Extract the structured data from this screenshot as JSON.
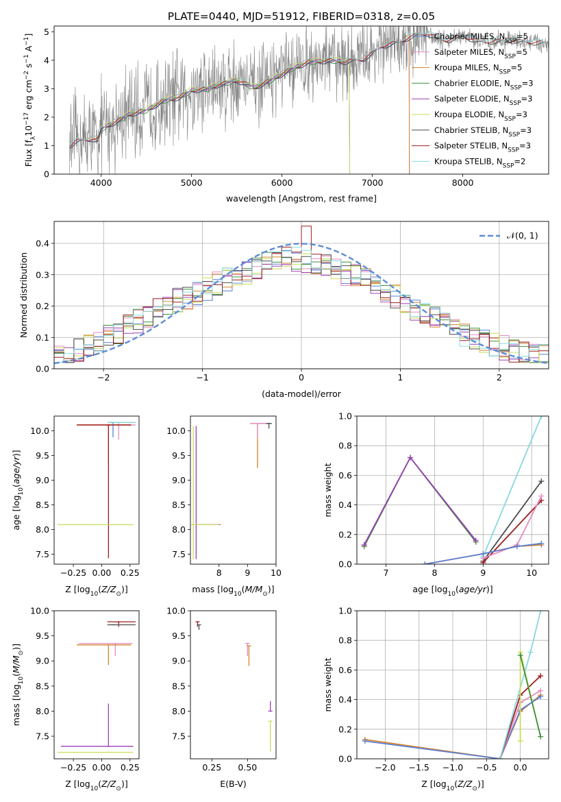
{
  "figure_title": "PLATE=0440, MJD=51912, FIBERID=0318, z=0.05",
  "colors": {
    "Chabrier MILES": "#5a7fd6",
    "Salpeter MILES": "#e58ac1",
    "Kroupa MILES": "#d4822a",
    "Chabrier ELODIE": "#3f8f3f",
    "Salpeter ELODIE": "#9b40b8",
    "Kroupa ELODIE": "#c9dd5a",
    "Chabrier STELIB": "#4b4b4b",
    "Salpeter STELIB": "#9b1b1b",
    "Kroupa STELIB": "#86d8df",
    "data": "#808080",
    "normal": "#5b8bd8"
  },
  "chart_data": [
    {
      "id": "spectrum",
      "type": "line",
      "xlabel": "wavelength [Angstrom, rest frame]",
      "ylabel": "Flux [f_λ 10^-17 erg cm^-2 s^-1 A^-1]",
      "xlim": [
        3480,
        8950
      ],
      "ylim": [
        0,
        5.2
      ],
      "xticks": [
        "4000",
        "5000",
        "6000",
        "7000",
        "8000"
      ],
      "yticks": [
        "0",
        "1",
        "2",
        "3",
        "4",
        "5"
      ],
      "legend_location": "upper right",
      "legend": [
        {
          "label": "Chabrier MILES, N",
          "sub": "SSP",
          "suffix": "=5"
        },
        {
          "label": "Salpeter MILES, N",
          "sub": "SSP",
          "suffix": "=5"
        },
        {
          "label": "Kroupa MILES, N",
          "sub": "SSP",
          "suffix": "=5"
        },
        {
          "label": "Chabrier ELODIE, N",
          "sub": "SSP",
          "suffix": "=3"
        },
        {
          "label": "Salpeter ELODIE, N",
          "sub": "SSP",
          "suffix": "=3"
        },
        {
          "label": "Kroupa ELODIE, N",
          "sub": "SSP",
          "suffix": "=3"
        },
        {
          "label": "Chabrier STELIB, N",
          "sub": "SSP",
          "suffix": "=3"
        },
        {
          "label": "Salpeter STELIB, N",
          "sub": "SSP",
          "suffix": "=3"
        },
        {
          "label": "Kroupa STELIB, N",
          "sub": "SSP",
          "suffix": "=2"
        }
      ],
      "model_continuum": {
        "wavelength": [
          3650,
          3720,
          3800,
          3900,
          3960,
          4000,
          4100,
          4200,
          4300,
          4500,
          4700,
          4861,
          5000,
          5175,
          5300,
          5500,
          5700,
          5900,
          6100,
          6300,
          6563,
          6700,
          6900,
          7000,
          7100,
          7300,
          7400,
          7500,
          7600,
          7800,
          8000,
          8200,
          8500,
          8950
        ],
        "flux": [
          1.0,
          1.15,
          1.2,
          1.25,
          1.2,
          1.6,
          1.75,
          1.9,
          2.1,
          2.25,
          2.6,
          2.7,
          2.95,
          3.0,
          3.15,
          3.3,
          3.05,
          3.35,
          3.7,
          3.95,
          4.0,
          3.95,
          4.05,
          4.25,
          4.5,
          4.65,
          4.8,
          4.9,
          4.95,
          4.7,
          4.85,
          4.65,
          4.7,
          4.6
        ]
      },
      "model_ranges": {
        "Chabrier MILES": [
          3650,
          7410
        ],
        "Salpeter MILES": [
          3650,
          7410
        ],
        "Kroupa MILES": [
          3650,
          7410
        ],
        "Chabrier ELODIE": [
          3900,
          6750
        ],
        "Salpeter ELODIE": [
          3900,
          6750
        ],
        "Kroupa ELODIE": [
          3900,
          6750
        ],
        "Chabrier STELIB": [
          3650,
          8950
        ],
        "Salpeter STELIB": [
          3650,
          8950
        ],
        "Kroupa STELIB": [
          3650,
          8950
        ]
      }
    },
    {
      "id": "residuals",
      "type": "line",
      "xlabel": "(data-model)/error",
      "ylabel": "Normed distribution",
      "xlim": [
        -2.5,
        2.5
      ],
      "ylim": [
        0,
        0.47
      ],
      "xticks": [
        "−2",
        "−1",
        "0",
        "1",
        "2"
      ],
      "yticks": [
        "0.0",
        "0.1",
        "0.2",
        "0.3",
        "0.4"
      ],
      "grid": true,
      "legend": [
        "𝒩(0, 1)"
      ],
      "legend_location": "upper right",
      "bin_width": 0.1,
      "histogram_envelope": {
        "x": [
          -2.5,
          -2.2,
          -1.9,
          -1.6,
          -1.3,
          -1.0,
          -0.7,
          -0.4,
          -0.2,
          0.0,
          0.2,
          0.5,
          0.8,
          1.1,
          1.4,
          1.7,
          2.0,
          2.3,
          2.5
        ],
        "y": [
          0.035,
          0.06,
          0.11,
          0.16,
          0.21,
          0.25,
          0.29,
          0.33,
          0.35,
          0.35,
          0.33,
          0.3,
          0.26,
          0.2,
          0.15,
          0.1,
          0.07,
          0.05,
          0.04
        ]
      },
      "histogram_max": 0.455,
      "normal_curve": {
        "mean": 0,
        "sigma": 1
      }
    },
    {
      "id": "age_vs_Z",
      "type": "scatter",
      "xlabel": "Z [log10(Z/Z⊙)]",
      "ylabel": "age [log10(age/yr)]",
      "xlim": [
        -0.42,
        0.33
      ],
      "ylim": [
        7.3,
        10.3
      ],
      "xticks": [
        "−0.25",
        "0.00",
        "0.25"
      ],
      "yticks": [
        "7.5",
        "8.0",
        "8.5",
        "9.0",
        "9.5",
        "10.0"
      ],
      "points": [
        {
          "x": 0.1,
          "y": 10.17,
          "xerr": [
            0.05,
            0.2
          ],
          "yerr": [
            0.3,
            0.0
          ],
          "model": "Chabrier MILES"
        },
        {
          "x": 0.15,
          "y": 10.17,
          "xerr": [
            0.1,
            0.15
          ],
          "yerr": [
            0.1,
            0.0
          ],
          "model": "Kroupa STELIB"
        },
        {
          "x": 0.15,
          "y": 10.12,
          "xerr": [
            0.35,
            0.15
          ],
          "yerr": [
            0.3,
            0.0
          ],
          "model": "Salpeter MILES"
        },
        {
          "x": 0.06,
          "y": 10.12,
          "xerr": [
            0.28,
            0.2
          ],
          "yerr": [
            0.8,
            0.0
          ],
          "model": "Kroupa MILES"
        },
        {
          "x": 0.06,
          "y": 10.12,
          "xerr": [
            0.28,
            0.2
          ],
          "yerr": [
            2.7,
            0.0
          ],
          "model": "Salpeter STELIB"
        },
        {
          "x": 0.06,
          "y": 8.1,
          "xerr": [
            0.45,
            0.22
          ],
          "yerr": [
            0.0,
            0.0
          ],
          "model": "Kroupa ELODIE"
        }
      ]
    },
    {
      "id": "age_vs_mass",
      "type": "scatter",
      "xlabel": "mass [log10(M/M⊙)]",
      "ylabel": "",
      "xlim": [
        7.0,
        10.0
      ],
      "ylim": [
        7.3,
        10.3
      ],
      "xticks": [
        "8",
        "9",
        "10"
      ],
      "yticks": [
        "7.5",
        "8.0",
        "8.5",
        "9.0",
        "9.5",
        "10.0"
      ],
      "points": [
        {
          "x": 9.35,
          "y": 10.15,
          "xerr": [
            0.25,
            0.45
          ],
          "yerr": [
            0.9,
            0.0
          ],
          "model": "Kroupa MILES"
        },
        {
          "x": 9.35,
          "y": 10.15,
          "xerr": [
            0.2,
            0.45
          ],
          "yerr": [
            0.3,
            0.0
          ],
          "model": "Salpeter MILES"
        },
        {
          "x": 9.75,
          "y": 10.15,
          "xerr": [
            0.1,
            0.1
          ],
          "yerr": [
            0.1,
            0.0
          ],
          "model": "Chabrier STELIB"
        },
        {
          "x": 7.2,
          "y": 8.1,
          "xerr": [
            0.0,
            0.85
          ],
          "yerr": [
            0.7,
            2.0
          ],
          "model": "Salpeter ELODIE"
        },
        {
          "x": 7.1,
          "y": 8.1,
          "xerr": [
            0.0,
            0.9
          ],
          "yerr": [
            0.7,
            2.0
          ],
          "model": "Kroupa ELODIE"
        }
      ]
    },
    {
      "id": "weight_vs_age",
      "type": "line",
      "xlabel": "age [log10(age/yr)]",
      "ylabel": "mass weight",
      "xlim": [
        6.4,
        10.35
      ],
      "ylim": [
        0,
        1.0
      ],
      "xticks": [
        "7",
        "8",
        "9",
        "10"
      ],
      "yticks": [
        "0.0",
        "0.2",
        "0.4",
        "0.6",
        "0.8",
        "1.0"
      ],
      "grid": true,
      "series": [
        {
          "model": "Kroupa ELODIE",
          "x": [
            6.55,
            7.5,
            8.85
          ],
          "y": [
            0.12,
            0.72,
            0.15
          ]
        },
        {
          "model": "Chabrier ELODIE",
          "x": [
            6.55,
            7.5,
            8.85
          ],
          "y": [
            0.12,
            0.72,
            0.15
          ]
        },
        {
          "model": "Salpeter ELODIE",
          "x": [
            6.55,
            7.5,
            8.85
          ],
          "y": [
            0.13,
            0.72,
            0.16
          ]
        },
        {
          "model": "Kroupa STELIB",
          "x": [
            9.0,
            10.2
          ],
          "y": [
            0.05,
            1.0
          ]
        },
        {
          "model": "Chabrier STELIB",
          "x": [
            9.0,
            10.2
          ],
          "y": [
            0.02,
            0.56
          ]
        },
        {
          "model": "Salpeter STELIB",
          "x": [
            9.0,
            10.2
          ],
          "y": [
            0.01,
            0.43
          ]
        },
        {
          "model": "Salpeter MILES",
          "x": [
            9.0,
            9.7,
            10.2
          ],
          "y": [
            0.04,
            0.13,
            0.46
          ]
        },
        {
          "model": "Kroupa MILES",
          "x": [
            7.8,
            9.0,
            9.7,
            10.2
          ],
          "y": [
            0.0,
            0.07,
            0.12,
            0.13
          ]
        },
        {
          "model": "Chabrier MILES",
          "x": [
            7.8,
            9.0,
            9.7,
            10.2
          ],
          "y": [
            0.0,
            0.07,
            0.12,
            0.14
          ]
        }
      ]
    },
    {
      "id": "mass_vs_Z",
      "type": "scatter",
      "xlabel": "Z [log10(Z/Z⊙)]",
      "ylabel": "mass [log10(M/M⊙)]",
      "xlim": [
        -0.42,
        0.33
      ],
      "ylim": [
        7.05,
        10.0
      ],
      "xticks": [
        "−0.25",
        "0.00",
        "0.25"
      ],
      "yticks": [
        "7.5",
        "8.0",
        "8.5",
        "9.0",
        "9.5",
        "10.0"
      ],
      "points": [
        {
          "x": 0.15,
          "y": 9.78,
          "xerr": [
            0.1,
            0.15
          ],
          "yerr": [
            0.1,
            0.0
          ],
          "model": "Salpeter STELIB"
        },
        {
          "x": 0.1,
          "y": 9.72,
          "xerr": [
            0.05,
            0.2
          ],
          "yerr": [
            0.0,
            0.0
          ],
          "model": "Chabrier STELIB"
        },
        {
          "x": 0.12,
          "y": 9.35,
          "xerr": [
            0.32,
            0.15
          ],
          "yerr": [
            0.25,
            0.0
          ],
          "model": "Salpeter MILES"
        },
        {
          "x": 0.06,
          "y": 9.32,
          "xerr": [
            0.28,
            0.2
          ],
          "yerr": [
            0.4,
            0.0
          ],
          "model": "Kroupa MILES"
        },
        {
          "x": 0.06,
          "y": 7.3,
          "xerr": [
            0.42,
            0.22
          ],
          "yerr": [
            0.0,
            0.85
          ],
          "model": "Salpeter ELODIE"
        },
        {
          "x": 0.06,
          "y": 7.18,
          "xerr": [
            0.45,
            0.22
          ],
          "yerr": [
            0.0,
            0.0
          ],
          "model": "Kroupa ELODIE"
        }
      ]
    },
    {
      "id": "mass_vs_EBV",
      "type": "scatter",
      "xlabel": "E(B-V)",
      "ylabel": "",
      "xlim": [
        0.1,
        0.7
      ],
      "ylim": [
        7.05,
        10.0
      ],
      "xticks": [
        "0.25",
        "0.50"
      ],
      "yticks": [
        "7.5",
        "8.0",
        "8.5",
        "9.0",
        "9.5",
        "10.0"
      ],
      "points": [
        {
          "x": 0.15,
          "y": 9.78,
          "yerr": [
            0.1,
            0.0
          ],
          "model": "Salpeter STELIB"
        },
        {
          "x": 0.16,
          "y": 9.72,
          "yerr": [
            0.1,
            0.0
          ],
          "model": "Chabrier STELIB"
        },
        {
          "x": 0.5,
          "y": 9.35,
          "yerr": [
            0.25,
            0.0
          ],
          "model": "Salpeter MILES"
        },
        {
          "x": 0.51,
          "y": 9.3,
          "yerr": [
            0.4,
            0.0
          ],
          "model": "Kroupa MILES"
        },
        {
          "x": 0.66,
          "y": 8.0,
          "yerr": [
            0.0,
            0.2
          ],
          "model": "Salpeter ELODIE"
        },
        {
          "x": 0.66,
          "y": 7.8,
          "yerr": [
            0.6,
            0.0
          ],
          "model": "Kroupa ELODIE"
        }
      ]
    },
    {
      "id": "weight_vs_Z",
      "type": "line",
      "xlabel": "Z [log10(Z/Z⊙)]",
      "ylabel": "mass weight",
      "xlim": [
        -2.42,
        0.42
      ],
      "ylim": [
        0,
        1.0
      ],
      "xticks": [
        "−2.0",
        "−1.5",
        "−1.0",
        "−0.5",
        "0.0"
      ],
      "yticks": [
        "0.0",
        "0.2",
        "0.4",
        "0.6",
        "0.8",
        "1.0"
      ],
      "grid": true,
      "series": [
        {
          "model": "Kroupa MILES",
          "x": [
            -2.3,
            -0.3,
            0.0,
            0.3
          ],
          "y": [
            0.13,
            0.0,
            0.32,
            0.43
          ]
        },
        {
          "model": "Chabrier MILES",
          "x": [
            -2.3,
            -0.3,
            0.0,
            0.3
          ],
          "y": [
            0.12,
            0.0,
            0.33,
            0.42
          ]
        },
        {
          "model": "Salpeter MILES",
          "x": [
            -0.3,
            0.0,
            0.3
          ],
          "y": [
            0.0,
            0.38,
            0.46
          ]
        },
        {
          "model": "Salpeter STELIB",
          "x": [
            -0.3,
            0.0,
            0.3
          ],
          "y": [
            0.0,
            0.43,
            0.56
          ]
        },
        {
          "model": "Kroupa STELIB",
          "x": [
            -0.3,
            0.15,
            0.3
          ],
          "y": [
            0.0,
            0.72,
            1.0
          ]
        },
        {
          "model": "Kroupa ELODIE",
          "x": [
            0.0,
            0.0,
            0.3
          ],
          "y": [
            0.12,
            0.72,
            0.15
          ]
        },
        {
          "model": "Chabrier ELODIE",
          "x": [
            0.0,
            0.3
          ],
          "y": [
            0.7,
            0.15
          ]
        }
      ]
    }
  ]
}
